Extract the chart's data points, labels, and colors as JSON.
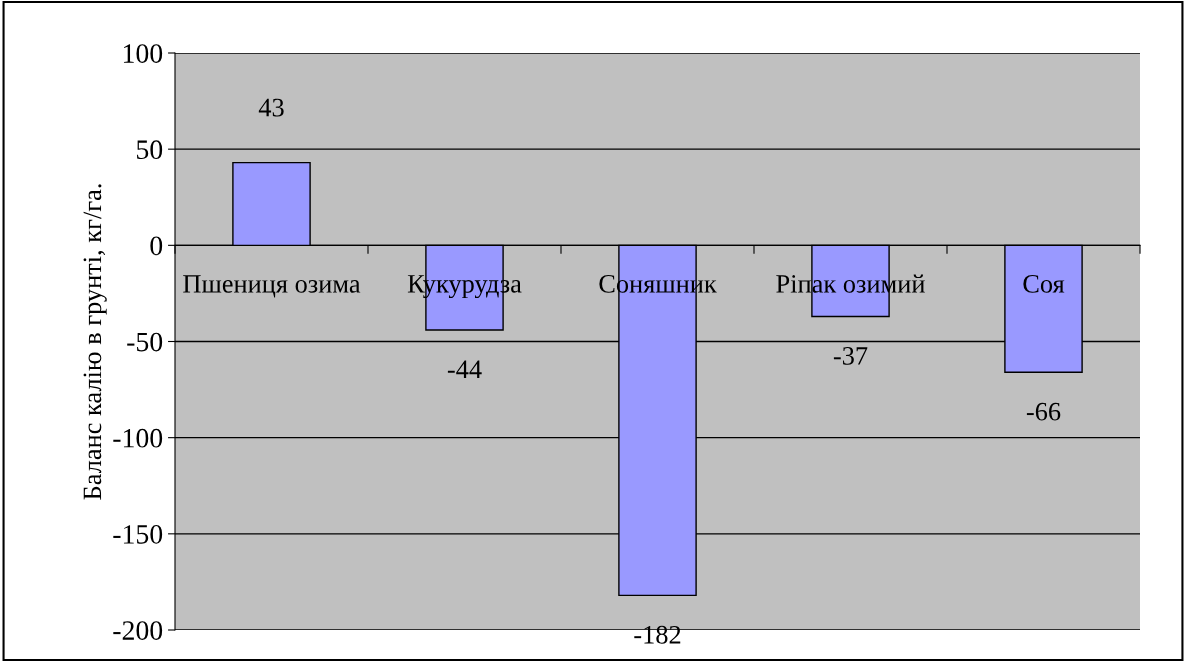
{
  "chart_data": {
    "type": "bar",
    "ylabel": "Баланс калію в грунті, кг/га.",
    "categories": [
      "Пшениця озима",
      "Кукурудза",
      "Соняшник",
      "Ріпак озимий",
      "Соя"
    ],
    "values": [
      43,
      -44,
      -182,
      -37,
      -66
    ],
    "color": "#9999ff",
    "ylim": [
      -200,
      100
    ],
    "yticks": [
      -200,
      -150,
      -100,
      -50,
      0,
      50,
      100
    ],
    "grid": "y",
    "data_labels": true
  }
}
